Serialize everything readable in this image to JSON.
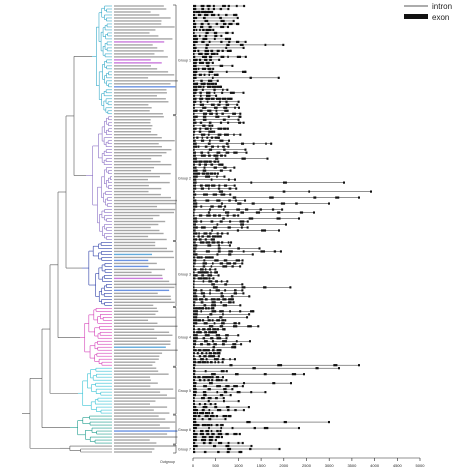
{
  "legend": {
    "intron": "intron",
    "exon": "exon"
  },
  "groups": [
    "Group 1",
    "Group 2",
    "Group 3",
    "Group 4",
    "Group 5",
    "Group 6",
    "Group 7"
  ],
  "outgroup_label": "Outgroup",
  "scale_ticks": [
    "0",
    "500",
    "1000",
    "1500",
    "2000",
    "2500",
    "3000",
    "3500",
    "4000",
    "4500",
    "5000"
  ],
  "colors": {
    "group1": "#33a9c9",
    "group2": "#8a6fc4",
    "group3": "#2d3fa8",
    "group4": "#d43fb8",
    "group5": "#36c2d4",
    "group6": "#1c9c8c",
    "base": "#555555",
    "exon": "#111111",
    "intron": "#222222"
  }
}
